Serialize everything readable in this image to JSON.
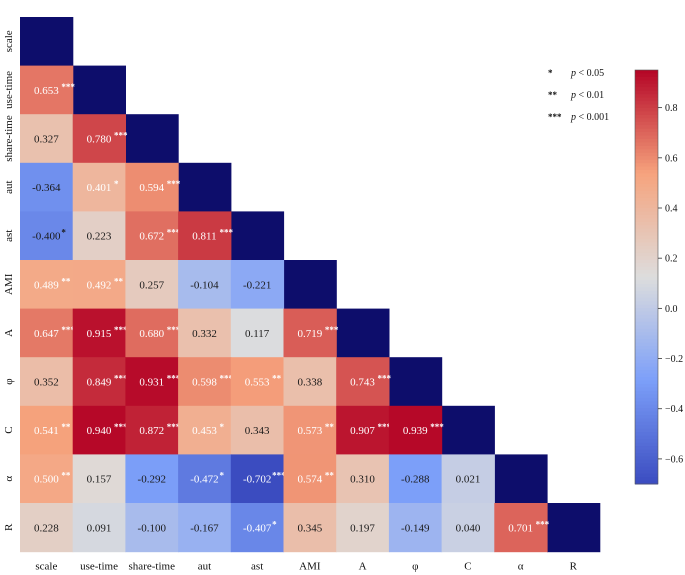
{
  "chart_data": {
    "type": "heatmap",
    "title": "",
    "variables": [
      "scale",
      "use-time",
      "share-time",
      "aut",
      "ast",
      "AMI",
      "A",
      "φ",
      "C",
      "α",
      "R"
    ],
    "cells": [
      {
        "row": 1,
        "col": 0,
        "value": 0.653,
        "label": "0.653",
        "stars": "***"
      },
      {
        "row": 2,
        "col": 0,
        "value": 0.327,
        "label": "0.327",
        "stars": ""
      },
      {
        "row": 2,
        "col": 1,
        "value": 0.78,
        "label": "0.780",
        "stars": "***"
      },
      {
        "row": 3,
        "col": 0,
        "value": -0.364,
        "label": "-0.364",
        "stars": ""
      },
      {
        "row": 3,
        "col": 1,
        "value": 0.401,
        "label": "0.401",
        "stars": "*"
      },
      {
        "row": 3,
        "col": 2,
        "value": 0.594,
        "label": "0.594",
        "stars": "***"
      },
      {
        "row": 4,
        "col": 0,
        "value": -0.4,
        "label": "-0.400",
        "stars": "*"
      },
      {
        "row": 4,
        "col": 1,
        "value": 0.223,
        "label": "0.223",
        "stars": ""
      },
      {
        "row": 4,
        "col": 2,
        "value": 0.672,
        "label": "0.672",
        "stars": "***"
      },
      {
        "row": 4,
        "col": 3,
        "value": 0.811,
        "label": "0.811",
        "stars": "***"
      },
      {
        "row": 5,
        "col": 0,
        "value": 0.489,
        "label": "0.489",
        "stars": "**"
      },
      {
        "row": 5,
        "col": 1,
        "value": 0.492,
        "label": "0.492",
        "stars": "**"
      },
      {
        "row": 5,
        "col": 2,
        "value": 0.257,
        "label": "0.257",
        "stars": ""
      },
      {
        "row": 5,
        "col": 3,
        "value": -0.104,
        "label": "-0.104",
        "stars": ""
      },
      {
        "row": 5,
        "col": 4,
        "value": -0.221,
        "label": "-0.221",
        "stars": ""
      },
      {
        "row": 6,
        "col": 0,
        "value": 0.647,
        "label": "0.647",
        "stars": "***"
      },
      {
        "row": 6,
        "col": 1,
        "value": 0.915,
        "label": "0.915",
        "stars": "***"
      },
      {
        "row": 6,
        "col": 2,
        "value": 0.68,
        "label": "0.680",
        "stars": "***"
      },
      {
        "row": 6,
        "col": 3,
        "value": 0.332,
        "label": "0.332",
        "stars": ""
      },
      {
        "row": 6,
        "col": 4,
        "value": 0.117,
        "label": "0.117",
        "stars": ""
      },
      {
        "row": 6,
        "col": 5,
        "value": 0.719,
        "label": "0.719",
        "stars": "***"
      },
      {
        "row": 7,
        "col": 0,
        "value": 0.352,
        "label": "0.352",
        "stars": ""
      },
      {
        "row": 7,
        "col": 1,
        "value": 0.849,
        "label": "0.849",
        "stars": "***"
      },
      {
        "row": 7,
        "col": 2,
        "value": 0.931,
        "label": "0.931",
        "stars": "***"
      },
      {
        "row": 7,
        "col": 3,
        "value": 0.598,
        "label": "0.598",
        "stars": "***"
      },
      {
        "row": 7,
        "col": 4,
        "value": 0.553,
        "label": "0.553",
        "stars": "**"
      },
      {
        "row": 7,
        "col": 5,
        "value": 0.338,
        "label": "0.338",
        "stars": ""
      },
      {
        "row": 7,
        "col": 6,
        "value": 0.743,
        "label": "0.743",
        "stars": "***"
      },
      {
        "row": 8,
        "col": 0,
        "value": 0.541,
        "label": "0.541",
        "stars": "**"
      },
      {
        "row": 8,
        "col": 1,
        "value": 0.94,
        "label": "0.940",
        "stars": "***"
      },
      {
        "row": 8,
        "col": 2,
        "value": 0.872,
        "label": "0.872",
        "stars": "***"
      },
      {
        "row": 8,
        "col": 3,
        "value": 0.453,
        "label": "0.453",
        "stars": "*"
      },
      {
        "row": 8,
        "col": 4,
        "value": 0.343,
        "label": "0.343",
        "stars": ""
      },
      {
        "row": 8,
        "col": 5,
        "value": 0.573,
        "label": "0.573",
        "stars": "**"
      },
      {
        "row": 8,
        "col": 6,
        "value": 0.907,
        "label": "0.907",
        "stars": "***"
      },
      {
        "row": 8,
        "col": 7,
        "value": 0.939,
        "label": "0.939",
        "stars": "***"
      },
      {
        "row": 9,
        "col": 0,
        "value": 0.5,
        "label": "0.500",
        "stars": "**"
      },
      {
        "row": 9,
        "col": 1,
        "value": 0.157,
        "label": "0.157",
        "stars": ""
      },
      {
        "row": 9,
        "col": 2,
        "value": -0.292,
        "label": "-0.292",
        "stars": ""
      },
      {
        "row": 9,
        "col": 3,
        "value": -0.472,
        "label": "-0.472",
        "stars": "*"
      },
      {
        "row": 9,
        "col": 4,
        "value": -0.702,
        "label": "-0.702",
        "stars": "***"
      },
      {
        "row": 9,
        "col": 5,
        "value": 0.574,
        "label": "0.574",
        "stars": "**"
      },
      {
        "row": 9,
        "col": 6,
        "value": 0.31,
        "label": "0.310",
        "stars": ""
      },
      {
        "row": 9,
        "col": 7,
        "value": -0.288,
        "label": "-0.288",
        "stars": ""
      },
      {
        "row": 9,
        "col": 8,
        "value": 0.021,
        "label": "0.021",
        "stars": ""
      },
      {
        "row": 10,
        "col": 0,
        "value": 0.228,
        "label": "0.228",
        "stars": ""
      },
      {
        "row": 10,
        "col": 1,
        "value": 0.091,
        "label": "0.091",
        "stars": ""
      },
      {
        "row": 10,
        "col": 2,
        "value": -0.1,
        "label": "-0.100",
        "stars": ""
      },
      {
        "row": 10,
        "col": 3,
        "value": -0.167,
        "label": "-0.167",
        "stars": ""
      },
      {
        "row": 10,
        "col": 4,
        "value": -0.407,
        "label": "-0.407",
        "stars": "*"
      },
      {
        "row": 10,
        "col": 5,
        "value": 0.345,
        "label": "0.345",
        "stars": ""
      },
      {
        "row": 10,
        "col": 6,
        "value": 0.197,
        "label": "0.197",
        "stars": ""
      },
      {
        "row": 10,
        "col": 7,
        "value": -0.149,
        "label": "-0.149",
        "stars": ""
      },
      {
        "row": 10,
        "col": 8,
        "value": 0.04,
        "label": "0.040",
        "stars": ""
      },
      {
        "row": 10,
        "col": 9,
        "value": 0.701,
        "label": "0.701",
        "stars": "***"
      }
    ],
    "diagonal_color": "#0d0d6b",
    "colormap": "coolwarm",
    "colorbar": {
      "vmin": -0.7,
      "vmax": 0.95,
      "ticks": [
        -0.6,
        -0.4,
        -0.2,
        0.0,
        0.2,
        0.4,
        0.6,
        0.8
      ],
      "tick_labels": [
        "−0.6",
        "−0.4",
        "−0.2",
        "0.0",
        "0.2",
        "0.4",
        "0.6",
        "0.8"
      ]
    },
    "significance_legend": [
      {
        "symbol": "*",
        "p_label": "p",
        "rest": " < 0.05"
      },
      {
        "symbol": "**",
        "p_label": "p",
        "rest": " < 0.01"
      },
      {
        "symbol": "***",
        "p_label": "p",
        "rest": " < 0.001"
      }
    ],
    "legend_position": "top-right"
  }
}
